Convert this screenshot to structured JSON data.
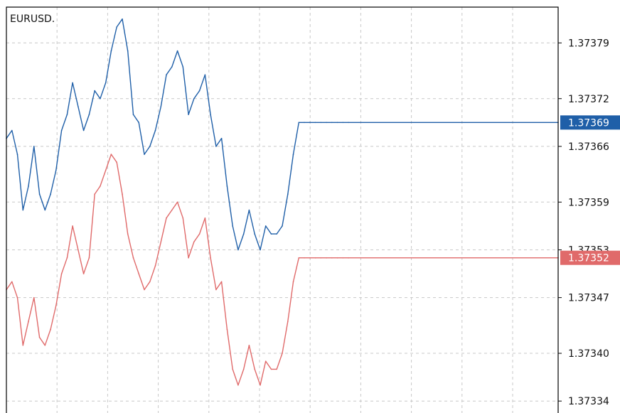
{
  "window": {
    "symbol": "EURUSD."
  },
  "colors": {
    "background": "#ffffff",
    "grid": "#c8c8c8",
    "frame": "#000000",
    "bid": "#1f5fa8",
    "ask": "#e06a6a",
    "axis_text": "#111111"
  },
  "chart_data": {
    "type": "line",
    "title": "EURUSD.",
    "grid": true,
    "ylim": [
      1.373325,
      1.373835
    ],
    "x_range": [
      0,
      100
    ],
    "y_ticks": [
      "1.37379",
      "1.37372",
      "1.37366",
      "1.37359",
      "1.37353",
      "1.37347",
      "1.37340",
      "1.37334"
    ],
    "series": [
      {
        "id": "bid",
        "color": "#1f5fa8",
        "last_price_label": "1.37369",
        "x": [
          0,
          1,
          2,
          3,
          4,
          5,
          6,
          7,
          8,
          9,
          10,
          11,
          12,
          13,
          14,
          15,
          16,
          17,
          18,
          19,
          20,
          21,
          22,
          23,
          24,
          25,
          26,
          27,
          28,
          29,
          30,
          31,
          32,
          33,
          34,
          35,
          36,
          37,
          38,
          39,
          40,
          41,
          42,
          43,
          44,
          45,
          46,
          47,
          48,
          49,
          50,
          51,
          52,
          53,
          54,
          55,
          56,
          57,
          58,
          59,
          60,
          61,
          62,
          100
        ],
        "values": [
          1.37367,
          1.37368,
          1.37365,
          1.37358,
          1.37361,
          1.37366,
          1.3736,
          1.37358,
          1.3736,
          1.37363,
          1.37368,
          1.3737,
          1.37374,
          1.37371,
          1.37368,
          1.3737,
          1.37373,
          1.37372,
          1.37374,
          1.37378,
          1.37381,
          1.37382,
          1.37378,
          1.3737,
          1.37369,
          1.37365,
          1.37366,
          1.37368,
          1.37371,
          1.37375,
          1.37376,
          1.37378,
          1.37376,
          1.3737,
          1.37372,
          1.37373,
          1.37375,
          1.3737,
          1.37366,
          1.37367,
          1.37361,
          1.37356,
          1.37353,
          1.37355,
          1.37358,
          1.37355,
          1.37353,
          1.37356,
          1.37355,
          1.37355,
          1.37356,
          1.3736,
          1.37365,
          1.37369,
          1.37369,
          1.37369,
          1.37369,
          1.37369,
          1.37369,
          1.37369,
          1.37369,
          1.37369,
          1.37369,
          1.37369
        ]
      },
      {
        "id": "ask",
        "color": "#e06a6a",
        "last_price_label": "1.37352",
        "x": [
          0,
          1,
          2,
          3,
          4,
          5,
          6,
          7,
          8,
          9,
          10,
          11,
          12,
          13,
          14,
          15,
          16,
          17,
          18,
          19,
          20,
          21,
          22,
          23,
          24,
          25,
          26,
          27,
          28,
          29,
          30,
          31,
          32,
          33,
          34,
          35,
          36,
          37,
          38,
          39,
          40,
          41,
          42,
          43,
          44,
          45,
          46,
          47,
          48,
          49,
          50,
          51,
          52,
          53,
          54,
          55,
          56,
          57,
          58,
          59,
          60,
          61,
          62,
          100
        ],
        "values": [
          1.37348,
          1.37349,
          1.37347,
          1.37341,
          1.37344,
          1.37347,
          1.37342,
          1.37341,
          1.37343,
          1.37346,
          1.3735,
          1.37352,
          1.37356,
          1.37353,
          1.3735,
          1.37352,
          1.3736,
          1.37361,
          1.37363,
          1.37365,
          1.37364,
          1.3736,
          1.37355,
          1.37352,
          1.3735,
          1.37348,
          1.37349,
          1.37351,
          1.37354,
          1.37357,
          1.37358,
          1.37359,
          1.37357,
          1.37352,
          1.37354,
          1.37355,
          1.37357,
          1.37352,
          1.37348,
          1.37349,
          1.37343,
          1.37338,
          1.37336,
          1.37338,
          1.37341,
          1.37338,
          1.37336,
          1.37339,
          1.37338,
          1.37338,
          1.3734,
          1.37344,
          1.37349,
          1.37352,
          1.37352,
          1.37352,
          1.37352,
          1.37352,
          1.37352,
          1.37352,
          1.37352,
          1.37352,
          1.37352,
          1.37352
        ]
      }
    ]
  }
}
